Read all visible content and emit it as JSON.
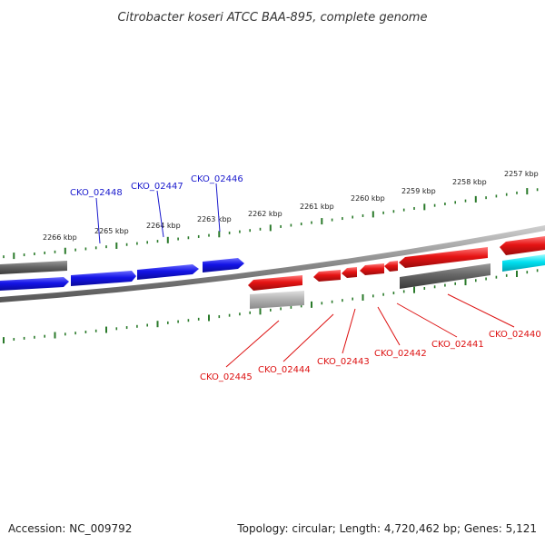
{
  "title": "Citrobacter koseri ATCC BAA-895, complete genome",
  "footer": {
    "accession": "Accession: NC_009792",
    "summary": "Topology: circular; Length: 4,720,462 bp; Genes: 5,121"
  },
  "colors": {
    "forward": "#1010e0",
    "reverse": "#e01010",
    "other": "#666666",
    "rna": "#00d8e8",
    "ticks": "#2a7a2a",
    "backbone": "#888888"
  },
  "scale": {
    "unit": "kbp",
    "labels": [
      "2266 kbp",
      "2265 kbp",
      "2264 kbp",
      "2263 kbp",
      "2262 kbp",
      "2261 kbp",
      "2260 kbp",
      "2259 kbp",
      "2258 kbp",
      "2257 kbp"
    ]
  },
  "genes": {
    "forward_labels": [
      "CKO_02448",
      "CKO_02447",
      "CKO_02446"
    ],
    "reverse_labels": [
      "CKO_02445",
      "CKO_02444",
      "CKO_02443",
      "CKO_02442",
      "CKO_02441",
      "CKO_02440"
    ]
  }
}
